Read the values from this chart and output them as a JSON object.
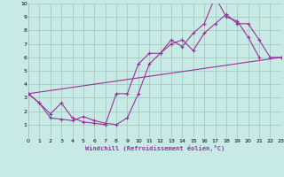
{
  "xlabel": "Windchill (Refroidissement éolien,°C)",
  "bg_color": "#c8eae4",
  "grid_color": "#a8c8c4",
  "line_color": "#993399",
  "x_min": 0,
  "x_max": 23,
  "y_min": 0,
  "y_max": 10,
  "series1_x": [
    0,
    1,
    2,
    3,
    4,
    5,
    6,
    7,
    8,
    9,
    10,
    11,
    12,
    13,
    14,
    15,
    16,
    17,
    18,
    19,
    20,
    21
  ],
  "series1_y": [
    3.3,
    2.6,
    1.8,
    2.6,
    1.5,
    1.2,
    1.1,
    1.0,
    3.3,
    3.3,
    5.5,
    6.3,
    6.3,
    7.3,
    6.8,
    7.8,
    8.5,
    10.5,
    9.0,
    8.7,
    7.5,
    6.0
  ],
  "series2_x": [
    0,
    1,
    2,
    3,
    4,
    5,
    6,
    7,
    8,
    9,
    10,
    11,
    12,
    13,
    14,
    15,
    16,
    17,
    18,
    19,
    20,
    21,
    22,
    23
  ],
  "series2_y": [
    3.3,
    2.6,
    1.5,
    1.4,
    1.3,
    1.6,
    1.3,
    1.1,
    1.0,
    1.5,
    3.3,
    5.5,
    6.3,
    7.0,
    7.3,
    6.5,
    7.8,
    8.5,
    9.2,
    8.5,
    8.5,
    7.3,
    6.0,
    6.0
  ],
  "series3_x": [
    0,
    23
  ],
  "series3_y": [
    3.3,
    6.0
  ],
  "x_ticks": [
    0,
    1,
    2,
    3,
    4,
    5,
    6,
    7,
    8,
    9,
    10,
    11,
    12,
    13,
    14,
    15,
    16,
    17,
    18,
    19,
    20,
    21,
    22,
    23
  ],
  "y_ticks": [
    1,
    2,
    3,
    4,
    5,
    6,
    7,
    8,
    9,
    10
  ]
}
